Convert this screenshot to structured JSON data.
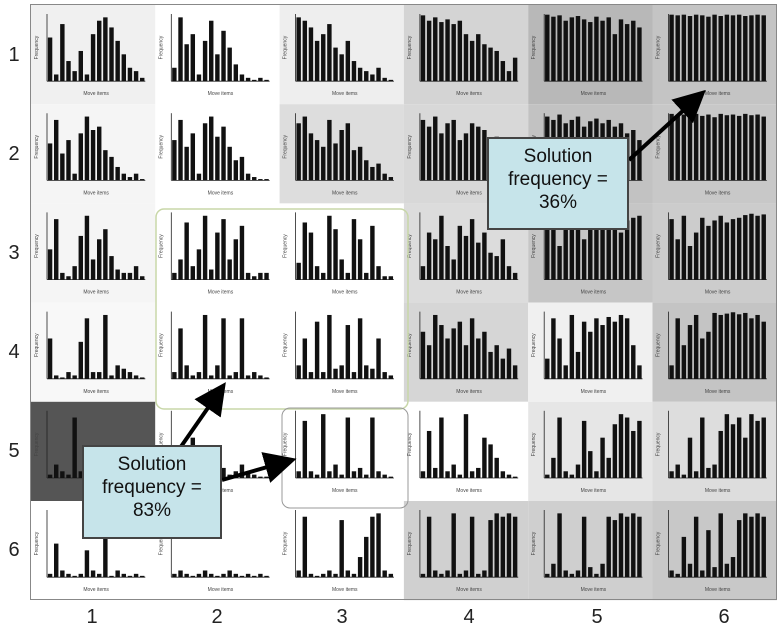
{
  "row_labels": [
    "1",
    "2",
    "3",
    "4",
    "5",
    "6"
  ],
  "col_labels": [
    "1",
    "2",
    "3",
    "4",
    "5",
    "6"
  ],
  "callouts": {
    "top_right": {
      "lines": [
        "Solution",
        "frequency =",
        "36%"
      ]
    },
    "bottom_left": {
      "lines": [
        "Solution",
        "frequency =",
        "83%"
      ]
    }
  },
  "panel_axis_labels": {
    "ylabel": "Frequency",
    "xlabel": "Move items"
  },
  "colors": {
    "bar": "#111111",
    "box_outline": "#c8d7a8",
    "box_outline_inner": "#999999",
    "callout_fill": "#c6e4ea",
    "arrow": "#000000"
  },
  "panels": [
    {
      "row": 1,
      "col": 1,
      "shade": "#f0f0f0",
      "bars": [
        0.65,
        0.1,
        0.85,
        0.3,
        0.15,
        0.45,
        0.1,
        0.7,
        0.9,
        0.95,
        0.8,
        0.6,
        0.4,
        0.2,
        0.15,
        0.05
      ]
    },
    {
      "row": 1,
      "col": 2,
      "shade": "#ffffff",
      "bars": [
        0.2,
        0.95,
        0.55,
        0.7,
        0.1,
        0.6,
        0.9,
        0.4,
        0.75,
        0.5,
        0.25,
        0.1,
        0.05,
        0.02,
        0.05,
        0.02
      ]
    },
    {
      "row": 1,
      "col": 3,
      "shade": "#eeeeee",
      "bars": [
        0.95,
        0.9,
        0.8,
        0.6,
        0.7,
        0.85,
        0.5,
        0.4,
        0.6,
        0.3,
        0.2,
        0.15,
        0.1,
        0.2,
        0.05,
        0.02
      ]
    },
    {
      "row": 1,
      "col": 4,
      "shade": "#d4d4d4",
      "bars": [
        0.98,
        0.9,
        0.95,
        0.88,
        0.92,
        0.85,
        0.9,
        0.7,
        0.6,
        0.7,
        0.55,
        0.5,
        0.45,
        0.3,
        0.15,
        0.35
      ]
    },
    {
      "row": 1,
      "col": 5,
      "shade": "#b8b8b8",
      "bars": [
        0.99,
        0.96,
        0.98,
        0.9,
        0.95,
        0.97,
        0.92,
        0.88,
        0.96,
        0.9,
        0.95,
        0.7,
        0.92,
        0.85,
        0.9,
        0.8
      ]
    },
    {
      "row": 1,
      "col": 6,
      "shade": "#c4c4c4",
      "bars": [
        0.99,
        0.98,
        0.99,
        0.97,
        0.99,
        0.98,
        0.96,
        0.99,
        0.97,
        0.99,
        0.98,
        0.99,
        0.97,
        0.98,
        0.99,
        0.98
      ]
    },
    {
      "row": 2,
      "col": 1,
      "shade": "#f5f5f5",
      "bars": [
        0.55,
        0.9,
        0.4,
        0.6,
        0.1,
        0.7,
        0.95,
        0.75,
        0.8,
        0.45,
        0.35,
        0.2,
        0.1,
        0.05,
        0.1,
        0.02
      ]
    },
    {
      "row": 2,
      "col": 2,
      "shade": "#ffffff",
      "bars": [
        0.6,
        0.9,
        0.5,
        0.7,
        0.1,
        0.85,
        0.95,
        0.65,
        0.8,
        0.5,
        0.3,
        0.35,
        0.1,
        0.05,
        0.02,
        0.02
      ]
    },
    {
      "row": 2,
      "col": 3,
      "shade": "#dddddd",
      "bars": [
        0.85,
        0.95,
        0.7,
        0.6,
        0.5,
        0.9,
        0.55,
        0.75,
        0.85,
        0.45,
        0.5,
        0.3,
        0.2,
        0.25,
        0.1,
        0.05
      ]
    },
    {
      "row": 2,
      "col": 4,
      "shade": "#d8d8d8",
      "bars": [
        0.9,
        0.8,
        0.95,
        0.7,
        0.85,
        0.9,
        0.6,
        0.7,
        0.85,
        0.8,
        0.75,
        0.6,
        0.65,
        0.5,
        0.35,
        0.2
      ]
    },
    {
      "row": 2,
      "col": 5,
      "shade": "#c2c2c2",
      "bars": [
        0.95,
        0.9,
        0.98,
        0.85,
        0.9,
        0.95,
        0.8,
        0.88,
        0.92,
        0.85,
        0.9,
        0.8,
        0.85,
        0.7,
        0.75,
        0.6
      ]
    },
    {
      "row": 2,
      "col": 6,
      "shade": "#c8c8c8",
      "bars": [
        0.99,
        0.97,
        0.98,
        0.95,
        0.99,
        0.96,
        0.98,
        0.94,
        0.99,
        0.97,
        0.98,
        0.96,
        0.99,
        0.97,
        0.98,
        0.95
      ]
    },
    {
      "row": 3,
      "col": 1,
      "shade": "#f5f5f5",
      "bars": [
        0.45,
        0.9,
        0.1,
        0.05,
        0.2,
        0.65,
        0.95,
        0.3,
        0.6,
        0.75,
        0.35,
        0.15,
        0.1,
        0.1,
        0.2,
        0.05
      ]
    },
    {
      "row": 3,
      "col": 2,
      "shade": "#ffffff",
      "bars": [
        0.1,
        0.3,
        0.85,
        0.2,
        0.45,
        0.95,
        0.15,
        0.7,
        0.9,
        0.3,
        0.6,
        0.8,
        0.1,
        0.05,
        0.1,
        0.1
      ]
    },
    {
      "row": 3,
      "col": 3,
      "shade": "#ffffff",
      "bars": [
        0.25,
        0.85,
        0.7,
        0.2,
        0.1,
        0.95,
        0.75,
        0.3,
        0.1,
        0.9,
        0.6,
        0.1,
        0.8,
        0.2,
        0.05,
        0.05
      ]
    },
    {
      "row": 3,
      "col": 4,
      "shade": "#dcdcdc",
      "bars": [
        0.2,
        0.7,
        0.6,
        0.95,
        0.5,
        0.3,
        0.8,
        0.65,
        0.9,
        0.55,
        0.7,
        0.4,
        0.35,
        0.6,
        0.2,
        0.1
      ]
    },
    {
      "row": 3,
      "col": 5,
      "shade": "#c6c6c6",
      "bars": [
        0.9,
        0.85,
        0.5,
        0.95,
        0.88,
        0.9,
        0.6,
        0.92,
        0.8,
        0.95,
        0.85,
        0.9,
        0.7,
        0.88,
        0.92,
        0.95
      ]
    },
    {
      "row": 3,
      "col": 6,
      "shade": "#cccccc",
      "bars": [
        0.9,
        0.6,
        0.95,
        0.5,
        0.7,
        0.92,
        0.8,
        0.88,
        0.95,
        0.85,
        0.9,
        0.92,
        0.96,
        0.98,
        0.95,
        0.97
      ]
    },
    {
      "row": 4,
      "col": 1,
      "shade": "#f8f8f8",
      "bars": [
        0.6,
        0.05,
        0.02,
        0.1,
        0.05,
        0.55,
        0.9,
        0.1,
        0.1,
        0.95,
        0.05,
        0.2,
        0.15,
        0.1,
        0.05,
        0.02
      ]
    },
    {
      "row": 4,
      "col": 2,
      "shade": "#ffffff",
      "bars": [
        0.1,
        0.75,
        0.2,
        0.05,
        0.1,
        0.95,
        0.05,
        0.2,
        0.9,
        0.05,
        0.1,
        0.9,
        0.05,
        0.1,
        0.05,
        0.02
      ]
    },
    {
      "row": 4,
      "col": 3,
      "shade": "#ffffff",
      "bars": [
        0.2,
        0.6,
        0.1,
        0.85,
        0.1,
        0.95,
        0.15,
        0.2,
        0.8,
        0.1,
        0.9,
        0.2,
        0.15,
        0.6,
        0.1,
        0.05
      ]
    },
    {
      "row": 4,
      "col": 4,
      "shade": "#d6d6d6",
      "bars": [
        0.7,
        0.5,
        0.95,
        0.8,
        0.6,
        0.75,
        0.85,
        0.5,
        0.9,
        0.6,
        0.7,
        0.4,
        0.5,
        0.3,
        0.45,
        0.2
      ]
    },
    {
      "row": 4,
      "col": 5,
      "shade": "#f0f0f0",
      "bars": [
        0.3,
        0.9,
        0.6,
        0.2,
        0.95,
        0.4,
        0.85,
        0.7,
        0.9,
        0.8,
        0.92,
        0.85,
        0.95,
        0.9,
        0.5,
        0.2
      ]
    },
    {
      "row": 4,
      "col": 6,
      "shade": "#c4c4c4",
      "bars": [
        0.2,
        0.9,
        0.5,
        0.8,
        0.95,
        0.6,
        0.7,
        0.98,
        0.95,
        0.97,
        0.99,
        0.96,
        0.98,
        0.9,
        0.95,
        0.85
      ]
    },
    {
      "row": 5,
      "col": 1,
      "shade": "#555555",
      "bars": [
        0.05,
        0.2,
        0.1,
        0.05,
        0.9,
        0.1,
        0.05,
        0.02,
        0.05,
        0.02,
        0.02,
        0.05,
        0.02,
        0.05,
        0.02,
        0.02
      ]
    },
    {
      "row": 5,
      "col": 2,
      "shade": "#ffffff",
      "bars": [
        0.1,
        0.2,
        0.15,
        0.6,
        0.1,
        0.05,
        0.2,
        0.1,
        0.15,
        0.05,
        0.1,
        0.2,
        0.1,
        0.05,
        0.02,
        0.02
      ]
    },
    {
      "row": 5,
      "col": 3,
      "shade": "#ffffff",
      "bars": [
        0.1,
        0.85,
        0.1,
        0.05,
        0.95,
        0.1,
        0.2,
        0.05,
        0.9,
        0.1,
        0.15,
        0.05,
        0.9,
        0.1,
        0.05,
        0.02
      ]
    },
    {
      "row": 5,
      "col": 4,
      "shade": "#ffffff",
      "bars": [
        0.1,
        0.7,
        0.15,
        0.9,
        0.1,
        0.2,
        0.05,
        0.95,
        0.1,
        0.15,
        0.6,
        0.5,
        0.3,
        0.1,
        0.05,
        0.02
      ]
    },
    {
      "row": 5,
      "col": 5,
      "shade": "#e6e6e6",
      "bars": [
        0.05,
        0.3,
        0.9,
        0.1,
        0.05,
        0.2,
        0.85,
        0.4,
        0.1,
        0.6,
        0.3,
        0.8,
        0.95,
        0.9,
        0.7,
        0.85
      ]
    },
    {
      "row": 5,
      "col": 6,
      "shade": "#dddddd",
      "bars": [
        0.1,
        0.2,
        0.05,
        0.6,
        0.1,
        0.9,
        0.15,
        0.2,
        0.7,
        0.95,
        0.8,
        0.9,
        0.6,
        0.95,
        0.85,
        0.9
      ]
    },
    {
      "row": 6,
      "col": 1,
      "shade": "#ffffff",
      "bars": [
        0.05,
        0.5,
        0.1,
        0.05,
        0.02,
        0.05,
        0.4,
        0.1,
        0.05,
        0.9,
        0.02,
        0.1,
        0.05,
        0.02,
        0.05,
        0.02
      ]
    },
    {
      "row": 6,
      "col": 2,
      "shade": "#ffffff",
      "bars": [
        0.05,
        0.1,
        0.05,
        0.02,
        0.05,
        0.1,
        0.05,
        0.02,
        0.05,
        0.1,
        0.05,
        0.02,
        0.05,
        0.02,
        0.05,
        0.02
      ]
    },
    {
      "row": 6,
      "col": 3,
      "shade": "#ffffff",
      "bars": [
        0.1,
        0.9,
        0.05,
        0.02,
        0.05,
        0.1,
        0.05,
        0.85,
        0.1,
        0.05,
        0.3,
        0.6,
        0.9,
        0.95,
        0.1,
        0.05
      ]
    },
    {
      "row": 6,
      "col": 4,
      "shade": "#d0d0d0",
      "bars": [
        0.05,
        0.9,
        0.1,
        0.05,
        0.1,
        0.95,
        0.05,
        0.1,
        0.9,
        0.05,
        0.1,
        0.85,
        0.95,
        0.9,
        0.95,
        0.9
      ]
    },
    {
      "row": 6,
      "col": 5,
      "shade": "#cfcfcf",
      "bars": [
        0.05,
        0.2,
        0.95,
        0.1,
        0.05,
        0.1,
        0.9,
        0.15,
        0.05,
        0.2,
        0.9,
        0.85,
        0.95,
        0.9,
        0.95,
        0.9
      ]
    },
    {
      "row": 6,
      "col": 6,
      "shade": "#c8c8c8",
      "bars": [
        0.1,
        0.05,
        0.6,
        0.2,
        0.9,
        0.1,
        0.7,
        0.15,
        0.95,
        0.2,
        0.3,
        0.85,
        0.95,
        0.9,
        0.95,
        0.9
      ]
    }
  ]
}
